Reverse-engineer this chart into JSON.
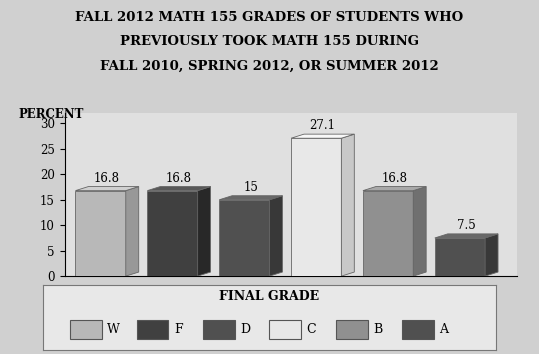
{
  "title_line1": "FALL 2012 MATH 155 GRADES OF STUDENTS WHO",
  "title_line2": "PREVIOUSLY TOOK MATH 155 DURING",
  "title_line3": "FALL 2010, SPRING 2012, OR SUMMER 2012",
  "ylabel": "PERCENT",
  "categories": [
    "W",
    "F",
    "D",
    "C",
    "B",
    "A"
  ],
  "values": [
    16.8,
    16.8,
    15.0,
    27.1,
    16.8,
    7.5
  ],
  "bar_colors_front": [
    "#b8b8b8",
    "#404040",
    "#505050",
    "#e8e8e8",
    "#909090",
    "#505050"
  ],
  "bar_colors_side": [
    "#989898",
    "#282828",
    "#383838",
    "#c8c8c8",
    "#707070",
    "#383838"
  ],
  "bar_colors_top": [
    "#d0d0d0",
    "#585858",
    "#686868",
    "#f8f8f8",
    "#a8a8a8",
    "#686868"
  ],
  "bar_edge_color": "#666666",
  "ylim": [
    0,
    32
  ],
  "yticks": [
    0,
    5,
    10,
    15,
    20,
    25,
    30
  ],
  "legend_title": "FINAL GRADE",
  "background_color": "#d0d0d0",
  "plot_bg_color": "#e0e0e0",
  "legend_bg_color": "#e8e8e8",
  "title_fontsize": 9.5,
  "label_fontsize": 8.5,
  "tick_fontsize": 8.5,
  "bar_label_fontsize": 8.5,
  "legend_fontsize": 9
}
